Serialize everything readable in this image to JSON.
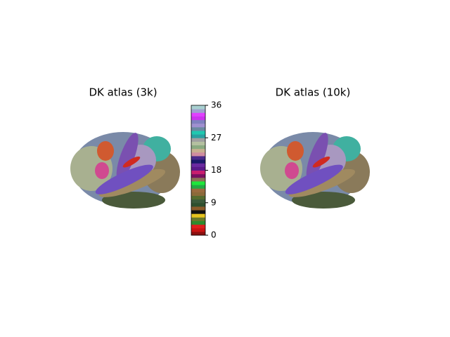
{
  "chart_data": [
    {
      "type": "brain",
      "title": "DK atlas (3k)"
    },
    {
      "type": "brain",
      "title": "DK atlas (10k)"
    },
    {
      "type": "colorbar",
      "clim": [
        0,
        36
      ],
      "ticks": [
        0,
        9,
        18,
        27,
        36
      ],
      "colors": [
        "#8b1010",
        "#c81414",
        "#e01e1e",
        "#2e8b2e",
        "#6b7a2a",
        "#e6c21e",
        "#111111",
        "#8b5a2b",
        "#2f4f2f",
        "#3c5a3c",
        "#556b2f",
        "#8b6a3a",
        "#9a6b40",
        "#22aa44",
        "#1ee63c",
        "#8b7355",
        "#7a1060",
        "#c81e6e",
        "#5a1a8a",
        "#6a2aa0",
        "#1a1a6a",
        "#4a2a8a",
        "#d08ca0",
        "#c8b090",
        "#8aaa80",
        "#b4c0a0",
        "#a0a0a0",
        "#2aa0a0",
        "#20c8b0",
        "#6a8aa0",
        "#a090d0",
        "#8080c0",
        "#cc33ee",
        "#e040ff",
        "#a0a0d0",
        "#a8d0d0"
      ]
    }
  ]
}
